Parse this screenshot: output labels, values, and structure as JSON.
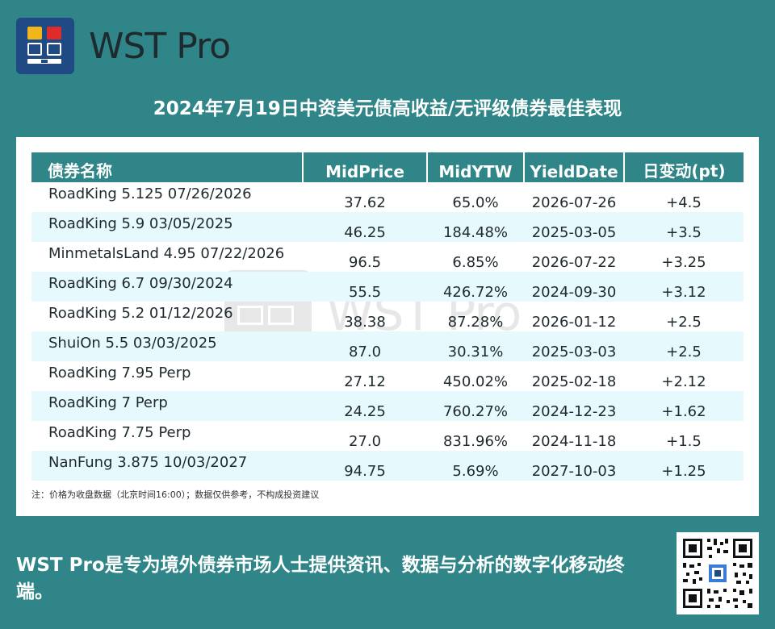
{
  "brand": {
    "name": "WST Pro",
    "logo_colors": [
      "#f2b61b",
      "#e02b2b",
      "#1f4a84"
    ]
  },
  "title": "2024年7月19日中资美元债高收益/无评级债券最佳表现",
  "table": {
    "headers": [
      "债券名称",
      "MidPrice",
      "MidYTW",
      "YieldDate",
      "日变动(pt)"
    ],
    "rows": [
      {
        "name": "RoadKing 5.125 07/26/2026",
        "price": "37.62",
        "ytw": "65.0%",
        "date": "2026-07-26",
        "change": "+4.5"
      },
      {
        "name": "RoadKing 5.9 03/05/2025",
        "price": "46.25",
        "ytw": "184.48%",
        "date": "2025-03-05",
        "change": "+3.5"
      },
      {
        "name": "MinmetalsLand 4.95 07/22/2026",
        "price": "96.5",
        "ytw": "6.85%",
        "date": "2026-07-22",
        "change": "+3.25"
      },
      {
        "name": "RoadKing 6.7 09/30/2024",
        "price": "55.5",
        "ytw": "426.72%",
        "date": "2024-09-30",
        "change": "+3.12"
      },
      {
        "name": "RoadKing 5.2 01/12/2026",
        "price": "38.38",
        "ytw": "87.28%",
        "date": "2026-01-12",
        "change": "+2.5"
      },
      {
        "name": "ShuiOn 5.5 03/03/2025",
        "price": "87.0",
        "ytw": "30.31%",
        "date": "2025-03-03",
        "change": "+2.5"
      },
      {
        "name": "RoadKing 7.95 Perp",
        "price": "27.12",
        "ytw": "450.02%",
        "date": "2025-02-18",
        "change": "+2.12"
      },
      {
        "name": "RoadKing 7 Perp",
        "price": "24.25",
        "ytw": "760.27%",
        "date": "2024-12-23",
        "change": "+1.62"
      },
      {
        "name": "RoadKing 7.75 Perp",
        "price": "27.0",
        "ytw": "831.96%",
        "date": "2024-11-18",
        "change": "+1.5"
      },
      {
        "name": "NanFung 3.875 10/03/2027",
        "price": "94.75",
        "ytw": "5.69%",
        "date": "2027-10-03",
        "change": "+1.25"
      }
    ]
  },
  "note": "注：价格为收盘数据（北京时间16:00）；数据仅供参考，不构成投资建议",
  "footer": "WST Pro是专为境外债券市场人士提供资讯、数据与分析的数字化移动终端。",
  "colors": {
    "background": "#2f8587",
    "header": "#2f8587",
    "row_alt": "#e6f9fc",
    "text": "#1f2a2e"
  }
}
